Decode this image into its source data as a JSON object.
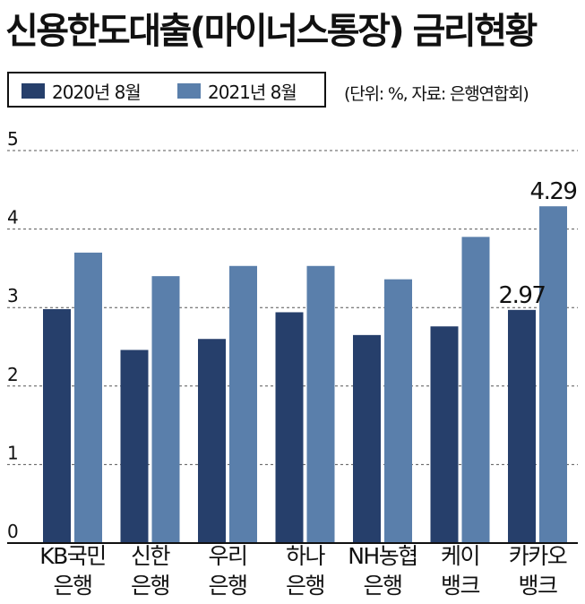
{
  "title": "신용한도대출(마이너스통장) 금리현황",
  "source_note": "(단위: %, 자료: 은행연합회)",
  "colors": {
    "series_2020": "#263f6b",
    "series_2021": "#5a7fab",
    "grid": "#555555"
  },
  "chart_data": {
    "type": "bar",
    "title": "신용한도대출(마이너스통장) 금리현황",
    "categories": [
      [
        "KB국민",
        "은행"
      ],
      [
        "신한",
        "은행"
      ],
      [
        "우리",
        "은행"
      ],
      [
        "하나",
        "은행"
      ],
      [
        "NH농협",
        "은행"
      ],
      [
        "케이",
        "뱅크"
      ],
      [
        "카카오",
        "뱅크"
      ]
    ],
    "series": [
      {
        "name": "2020년 8월",
        "values": [
          2.98,
          2.46,
          2.6,
          2.94,
          2.65,
          2.76,
          2.97
        ]
      },
      {
        "name": "2021년 8월",
        "values": [
          3.7,
          3.4,
          3.53,
          3.53,
          3.36,
          3.9,
          4.29
        ]
      }
    ],
    "data_labels": [
      {
        "series": 0,
        "index": 6,
        "text": "2.97"
      },
      {
        "series": 1,
        "index": 6,
        "text": "4.29"
      }
    ],
    "yticks": [
      "0",
      "1",
      "2",
      "3",
      "4",
      "5"
    ],
    "ylim": [
      0,
      5
    ],
    "grid": true,
    "legend_position": "top-left"
  }
}
